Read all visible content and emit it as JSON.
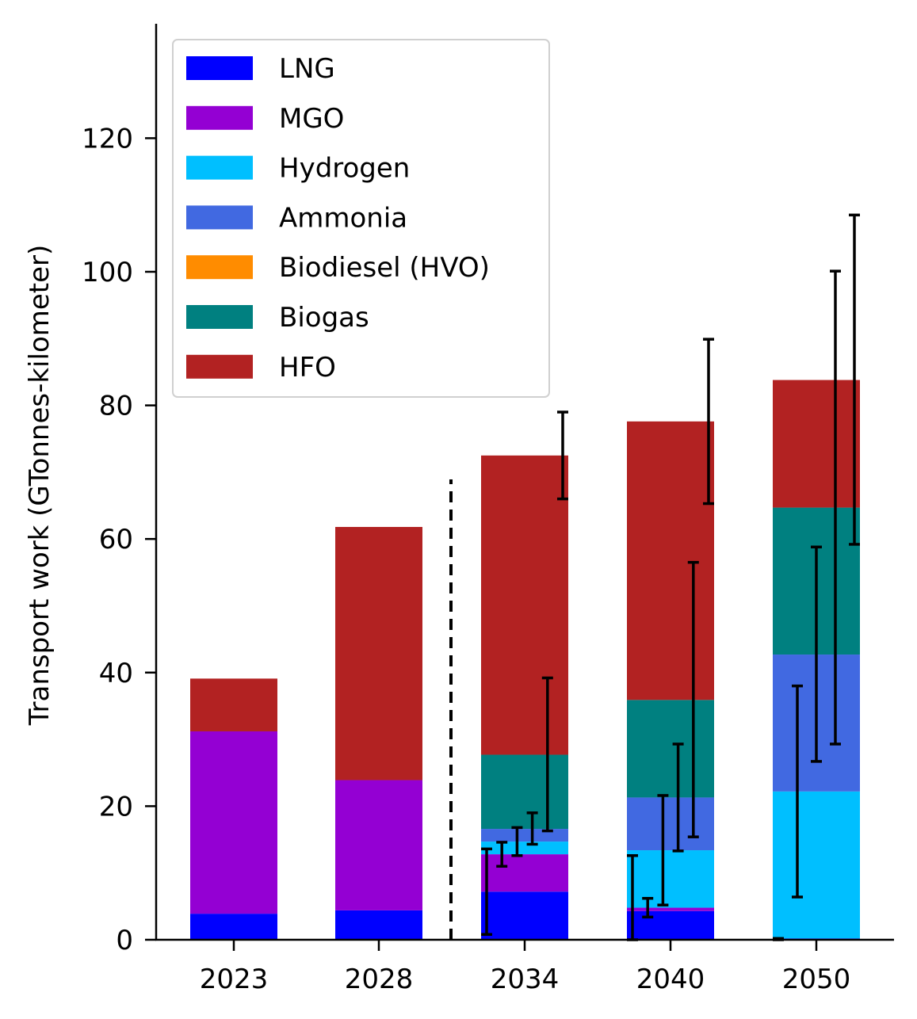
{
  "chart_data": {
    "type": "bar",
    "stacked": true,
    "title": "",
    "xlabel": "",
    "ylabel": "Transport work (GTonnes-kilometer)",
    "ylim": [
      0,
      137
    ],
    "yticks": [
      0,
      20,
      40,
      60,
      80,
      100,
      120
    ],
    "categories": [
      "2023",
      "2028",
      "2034",
      "2040",
      "2050"
    ],
    "projection_divider": "dashed line between 2028 and 2034",
    "legend_position": "top-left",
    "series": [
      {
        "name": "LNG",
        "color": "#0000ff",
        "values": [
          3.9,
          4.4,
          7.2,
          4.3,
          0.2
        ]
      },
      {
        "name": "MGO",
        "color": "#9400d3",
        "values": [
          27.3,
          19.5,
          5.6,
          0.5,
          0.0
        ]
      },
      {
        "name": "Hydrogen",
        "color": "#00bfff",
        "values": [
          0.0,
          0.0,
          1.9,
          8.6,
          22.0
        ]
      },
      {
        "name": "Ammonia",
        "color": "#4169e1",
        "values": [
          0.0,
          0.0,
          1.9,
          7.9,
          20.5
        ]
      },
      {
        "name": "Biodiesel (HVO)",
        "color": "#ff8c00",
        "values": [
          0.0,
          0.0,
          0.0,
          0.0,
          0.0
        ]
      },
      {
        "name": "Biogas",
        "color": "#008080",
        "values": [
          0.0,
          0.0,
          11.1,
          14.6,
          22.0
        ]
      },
      {
        "name": "HFO",
        "color": "#b22222",
        "values": [
          7.9,
          37.9,
          44.8,
          41.7,
          19.1
        ]
      }
    ],
    "error_bars": [
      {
        "category": "2034",
        "center": 7.2,
        "low": 0.8,
        "high": 13.6
      },
      {
        "category": "2034",
        "center": 12.8,
        "low": 11.0,
        "high": 14.6
      },
      {
        "category": "2034",
        "center": 14.7,
        "low": 12.6,
        "high": 16.8
      },
      {
        "category": "2034",
        "center": 16.6,
        "low": 14.3,
        "high": 19.0
      },
      {
        "category": "2034",
        "center": 27.7,
        "low": 16.3,
        "high": 39.2
      },
      {
        "category": "2034",
        "center": 72.5,
        "low": 66.0,
        "high": 79.0
      },
      {
        "category": "2040",
        "center": 4.3,
        "low": 0.0,
        "high": 12.6
      },
      {
        "category": "2040",
        "center": 4.8,
        "low": 3.4,
        "high": 6.2
      },
      {
        "category": "2040",
        "center": 13.4,
        "low": 5.2,
        "high": 21.6
      },
      {
        "category": "2040",
        "center": 21.3,
        "low": 13.3,
        "high": 29.3
      },
      {
        "category": "2040",
        "center": 35.9,
        "low": 15.4,
        "high": 56.5
      },
      {
        "category": "2040",
        "center": 77.6,
        "low": 65.3,
        "high": 89.9
      },
      {
        "category": "2050",
        "center": 0.2,
        "low": 0.0,
        "high": 0.2
      },
      {
        "category": "2050",
        "center": 22.2,
        "low": 6.4,
        "high": 38.0
      },
      {
        "category": "2050",
        "center": 42.7,
        "low": 26.7,
        "high": 58.8
      },
      {
        "category": "2050",
        "center": 64.7,
        "low": 29.3,
        "high": 100.1
      },
      {
        "category": "2050",
        "center": 83.8,
        "low": 59.2,
        "high": 108.5
      }
    ]
  }
}
